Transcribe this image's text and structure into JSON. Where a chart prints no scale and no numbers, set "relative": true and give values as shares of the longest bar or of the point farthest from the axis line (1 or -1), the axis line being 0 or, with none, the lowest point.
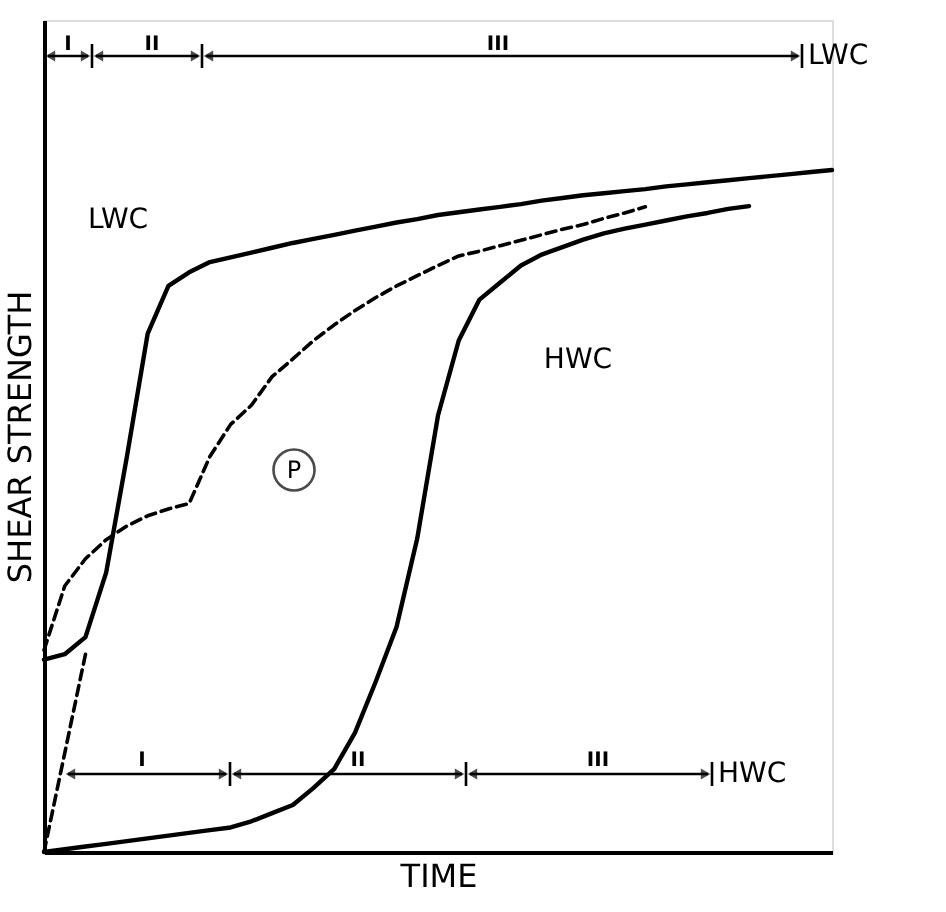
{
  "chart_data": {
    "type": "line",
    "relative": true,
    "xlabel": "TIME",
    "ylabel": "SHEAR STRENGTH",
    "tick_labels": false,
    "grid": false,
    "marker": "none",
    "categories": [
      null,
      null,
      null,
      null,
      null,
      null,
      null,
      null,
      null,
      null,
      null,
      null,
      null,
      null,
      null,
      null,
      null,
      null,
      null,
      null,
      null,
      null,
      null,
      null,
      null,
      null,
      null,
      null,
      null,
      null,
      null,
      null,
      null,
      null,
      null,
      null,
      null,
      null,
      null
    ],
    "series": [
      {
        "name": "LWC",
        "color": "#000000",
        "line_style": "solid",
        "values": [
          0.282,
          0.29,
          0.315,
          0.41,
          0.58,
          0.76,
          0.83,
          0.85,
          0.865,
          0.872,
          0.879,
          0.886,
          0.893,
          0.899,
          0.905,
          0.911,
          0.917,
          0.923,
          0.928,
          0.934,
          0.938,
          0.942,
          0.946,
          0.95,
          0.955,
          0.959,
          0.963,
          0.966,
          0.969,
          0.972,
          0.976,
          0.979,
          0.982,
          0.985,
          0.988,
          0.991,
          0.994,
          0.997,
          1.0
        ]
      },
      {
        "name": "HWC",
        "color": "#000000",
        "line_style": "solid",
        "values": [
          0,
          0.004,
          0.008,
          0.012,
          0.016,
          0.02,
          0.024,
          0.028,
          0.032,
          0.036,
          0.045,
          0.057,
          0.069,
          0.094,
          0.122,
          0.175,
          0.25,
          0.33,
          0.46,
          0.64,
          0.75,
          0.81,
          0.835,
          0.86,
          0.876,
          0.887,
          0.898,
          0.907,
          0.914,
          0.92,
          0.926,
          0.932,
          0.937,
          0.943,
          0.947,
          null,
          null,
          null,
          null
        ]
      },
      {
        "name": "P",
        "color": "#000000",
        "line_style": "dashed",
        "values": [
          0.296,
          0.39,
          0.43,
          0.458,
          0.478,
          0.493,
          0.503,
          0.511,
          0.58,
          0.627,
          0.655,
          0.697,
          0.723,
          0.75,
          0.773,
          0.794,
          0.813,
          0.83,
          0.845,
          0.86,
          0.874,
          0.881,
          0.889,
          0.897,
          0.905,
          0.913,
          0.92,
          0.929,
          0.937,
          0.946,
          null,
          null,
          null,
          null,
          null,
          null,
          null,
          null,
          null
        ]
      },
      {
        "color": "#000000",
        "line_style": "dashed",
        "values": [
          0,
          0.145,
          0.29,
          null,
          null,
          null,
          null,
          null,
          null,
          null,
          null,
          null,
          null,
          null,
          null,
          null,
          null,
          null,
          null,
          null,
          null,
          null,
          null,
          null,
          null,
          null,
          null,
          null,
          null,
          null,
          null,
          null,
          null,
          null,
          null,
          null,
          null,
          null,
          null
        ]
      }
    ],
    "annotations": [
      "I",
      "II",
      "III",
      "LWC",
      "I",
      "II",
      "III",
      "HWC"
    ]
  }
}
